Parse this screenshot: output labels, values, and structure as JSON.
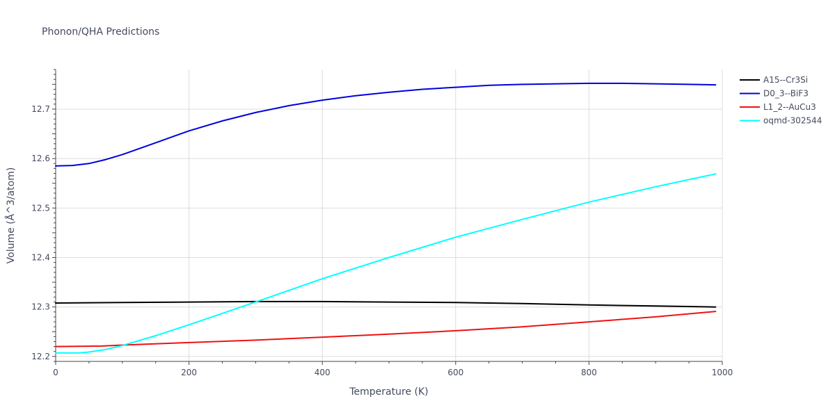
{
  "chart_data": {
    "type": "line",
    "title": "Phonon/QHA Predictions",
    "xlabel": "Temperature (K)",
    "ylabel": "Volume (Å^3/atom)",
    "xlim": [
      0,
      1000
    ],
    "ylim": [
      12.19,
      12.78
    ],
    "x_ticks": [
      0,
      200,
      400,
      600,
      800,
      1000
    ],
    "y_ticks": [
      12.2,
      12.3,
      12.4,
      12.5,
      12.6,
      12.7
    ],
    "grid": true,
    "legend_position": "top-right",
    "series": [
      {
        "name": "A15--Cr3Si",
        "color": "#000000",
        "x": [
          0,
          100,
          200,
          300,
          400,
          500,
          600,
          700,
          800,
          900,
          990
        ],
        "y": [
          12.308,
          12.309,
          12.31,
          12.311,
          12.311,
          12.31,
          12.309,
          12.307,
          12.304,
          12.302,
          12.3
        ]
      },
      {
        "name": "D0_3--BiF3",
        "color": "#0000dd",
        "x": [
          0,
          25,
          50,
          75,
          100,
          150,
          200,
          250,
          300,
          350,
          400,
          450,
          500,
          550,
          600,
          650,
          700,
          750,
          800,
          850,
          900,
          950,
          990
        ],
        "y": [
          12.585,
          12.586,
          12.59,
          12.598,
          12.608,
          12.632,
          12.656,
          12.676,
          12.693,
          12.707,
          12.718,
          12.727,
          12.734,
          12.74,
          12.744,
          12.748,
          12.75,
          12.751,
          12.752,
          12.752,
          12.751,
          12.75,
          12.749
        ]
      },
      {
        "name": "L1_2--AuCu3",
        "color": "#ee1111",
        "x": [
          0,
          70,
          100,
          200,
          300,
          400,
          500,
          600,
          700,
          800,
          900,
          990
        ],
        "y": [
          12.22,
          12.221,
          12.223,
          12.228,
          12.233,
          12.239,
          12.245,
          12.252,
          12.26,
          12.27,
          12.28,
          12.291
        ]
      },
      {
        "name": "oqmd-302544",
        "color": "#00ffff",
        "x": [
          0,
          35,
          50,
          75,
          100,
          150,
          200,
          300,
          400,
          500,
          600,
          700,
          800,
          900,
          990
        ],
        "y": [
          12.207,
          12.207,
          12.209,
          12.214,
          12.222,
          12.242,
          12.264,
          12.31,
          12.357,
          12.4,
          12.441,
          12.477,
          12.512,
          12.543,
          12.569
        ]
      }
    ]
  }
}
